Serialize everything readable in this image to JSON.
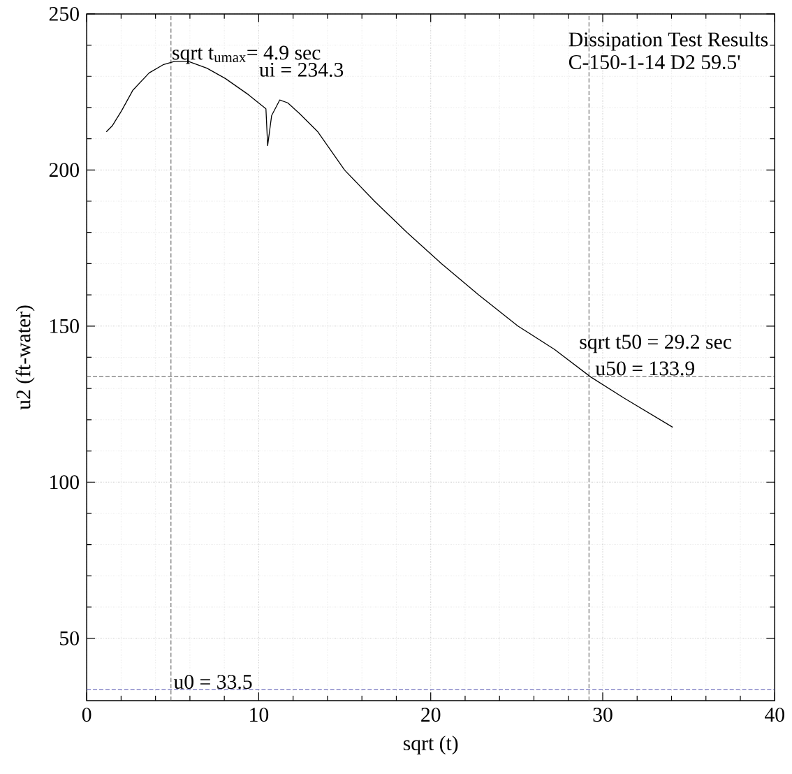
{
  "chart_data": {
    "type": "line",
    "title": "Dissipation Test Results",
    "subtitle": "C-150-1-14 D2 59.5'",
    "xlabel": "sqrt (t)",
    "ylabel": "u2 (ft-water)",
    "series": [
      {
        "color": "#000000",
        "x": [
          1.14,
          1.48,
          2.02,
          2.69,
          3.63,
          4.44,
          5.11,
          5.91,
          6.99,
          8.06,
          9.41,
          10.42,
          10.52,
          10.75,
          11.22,
          11.69,
          12.37,
          13.44,
          14.99,
          16.73,
          18.62,
          20.63,
          22.78,
          25.07,
          27.2,
          29.3,
          31.25,
          34.07
        ],
        "values": [
          212.2,
          214.1,
          218.9,
          225.6,
          231.1,
          233.7,
          234.8,
          234.8,
          232.6,
          229.3,
          224.1,
          219.6,
          207.8,
          217.4,
          222.4,
          221.5,
          218.1,
          212.2,
          200,
          190,
          180,
          170,
          160,
          150,
          142.5,
          133.7,
          126.9,
          117.6
        ]
      }
    ],
    "xlim": [
      0,
      40
    ],
    "ylim": [
      30,
      250
    ],
    "xticks": [
      0,
      10,
      20,
      30,
      40
    ],
    "yticks": [
      50,
      100,
      150,
      200,
      250
    ],
    "grid": true,
    "ref_lines": [
      {
        "axis": "x",
        "value": 4.9,
        "label": "sqrt t$_{umax}$= 4.9 sec",
        "color": "#555555",
        "line_style": "dashed"
      },
      {
        "axis": "x",
        "value": 29.2,
        "label": "sqrt t50 = 29.2 sec",
        "color": "#555555",
        "line_style": "dashed"
      },
      {
        "axis": "y",
        "value": 133.9,
        "label": "u50 = 133.9",
        "color": "#555555",
        "line_style": "dashed"
      },
      {
        "axis": "y",
        "value": 33.5,
        "label": "u0 = 33.5",
        "color": "#5555b0",
        "line_style": "dashed"
      }
    ],
    "annotations": [
      "ui = 234.3"
    ]
  }
}
